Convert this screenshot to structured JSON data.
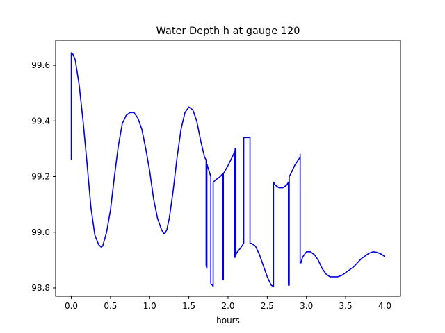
{
  "chart_data": {
    "type": "line",
    "title": "Water Depth h at gauge 120",
    "xlabel": "hours",
    "ylabel": "",
    "xlim": [
      -0.2,
      4.2
    ],
    "ylim": [
      98.77,
      99.69
    ],
    "xticks": [
      0.0,
      0.5,
      1.0,
      1.5,
      2.0,
      2.5,
      3.0,
      3.5,
      4.0
    ],
    "xtick_labels": [
      "0.0",
      "0.5",
      "1.0",
      "1.5",
      "2.0",
      "2.5",
      "3.0",
      "3.5",
      "4.0"
    ],
    "yticks": [
      98.8,
      99.0,
      99.2,
      99.4,
      99.6
    ],
    "ytick_labels": [
      "98.8",
      "99.0",
      "99.2",
      "99.4",
      "99.6"
    ],
    "grid": false,
    "legend": "none",
    "series": [
      {
        "color": "#0000dd",
        "x": [
          0.0,
          0.0,
          0.02,
          0.05,
          0.1,
          0.15,
          0.2,
          0.25,
          0.3,
          0.35,
          0.38,
          0.4,
          0.42,
          0.45,
          0.5,
          0.55,
          0.6,
          0.65,
          0.7,
          0.75,
          0.8,
          0.85,
          0.9,
          0.95,
          1.0,
          1.05,
          1.1,
          1.15,
          1.18,
          1.2,
          1.22,
          1.25,
          1.3,
          1.35,
          1.4,
          1.45,
          1.5,
          1.55,
          1.6,
          1.65,
          1.7,
          1.72,
          1.72,
          1.73,
          1.73,
          1.78,
          1.78,
          1.8,
          1.8,
          1.81,
          1.81,
          1.85,
          1.9,
          1.93,
          1.93,
          1.94,
          1.94,
          2.0,
          2.07,
          2.08,
          2.08,
          2.09,
          2.09,
          2.1,
          2.1,
          2.12,
          2.15,
          2.2,
          2.2,
          2.22,
          2.28,
          2.28,
          2.3,
          2.35,
          2.4,
          2.45,
          2.5,
          2.55,
          2.58,
          2.58,
          2.6,
          2.65,
          2.7,
          2.75,
          2.77,
          2.77,
          2.78,
          2.78,
          2.8,
          2.85,
          2.92,
          2.92,
          2.92,
          2.93,
          2.95,
          3.0,
          3.05,
          3.1,
          3.15,
          3.2,
          3.25,
          3.3,
          3.35,
          3.4,
          3.45,
          3.5,
          3.55,
          3.6,
          3.65,
          3.7,
          3.75,
          3.8,
          3.85,
          3.9,
          3.95,
          4.0
        ],
        "y": [
          99.26,
          99.645,
          99.64,
          99.62,
          99.53,
          99.4,
          99.25,
          99.09,
          98.99,
          98.955,
          98.947,
          98.95,
          98.97,
          99.0,
          99.08,
          99.2,
          99.31,
          99.39,
          99.42,
          99.43,
          99.43,
          99.41,
          99.37,
          99.3,
          99.22,
          99.12,
          99.05,
          99.01,
          98.995,
          98.998,
          99.01,
          99.05,
          99.15,
          99.27,
          99.37,
          99.43,
          99.45,
          99.44,
          99.4,
          99.33,
          99.27,
          99.26,
          98.88,
          98.87,
          99.245,
          99.2,
          98.815,
          98.81,
          98.81,
          98.805,
          99.18,
          99.19,
          99.2,
          99.21,
          98.83,
          98.83,
          99.21,
          99.24,
          99.28,
          99.29,
          98.91,
          98.91,
          99.3,
          99.3,
          98.92,
          98.93,
          98.94,
          98.96,
          99.34,
          99.34,
          99.34,
          98.96,
          98.96,
          98.95,
          98.92,
          98.88,
          98.84,
          98.81,
          98.805,
          99.18,
          99.17,
          99.16,
          99.16,
          99.17,
          99.18,
          98.81,
          98.81,
          99.2,
          99.21,
          99.24,
          99.27,
          99.28,
          98.89,
          98.89,
          98.91,
          98.93,
          98.93,
          98.92,
          98.9,
          98.87,
          98.85,
          98.84,
          98.84,
          98.84,
          98.845,
          98.855,
          98.865,
          98.875,
          98.89,
          98.905,
          98.915,
          98.925,
          98.93,
          98.928,
          98.922,
          98.913
        ]
      }
    ]
  }
}
